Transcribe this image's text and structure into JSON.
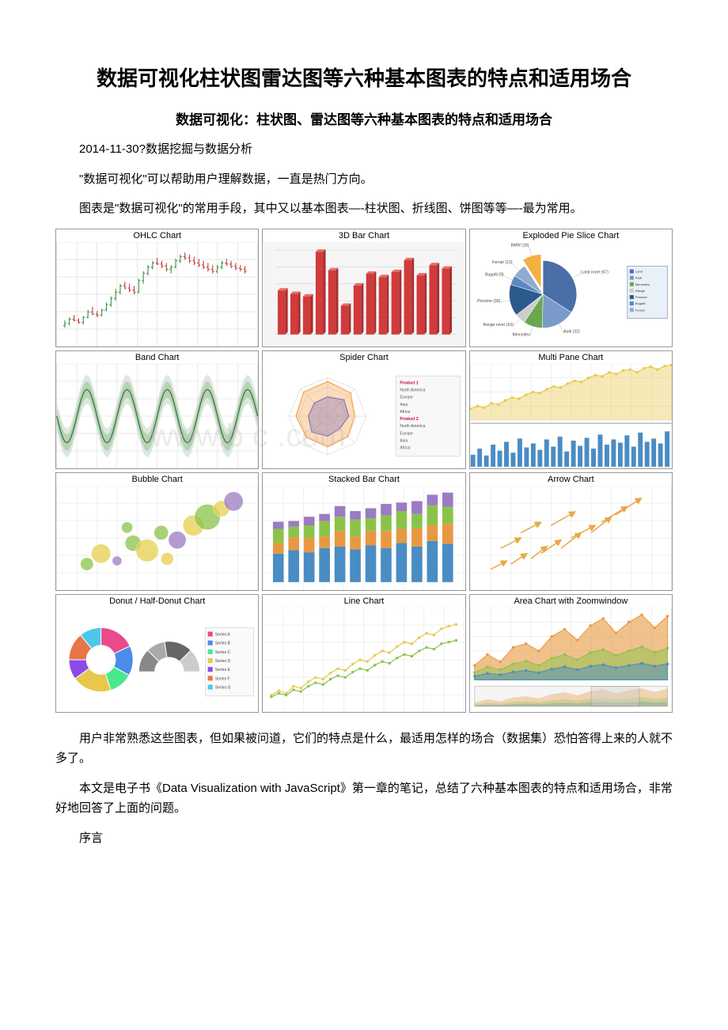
{
  "title": "数据可视化柱状图雷达图等六种基本图表的特点和适用场合",
  "subtitle": "数据可视化：柱状图、雷达图等六种基本图表的特点和适用场合",
  "meta_line": "2014-11-30?数据挖掘与数据分析",
  "para1": "\"数据可视化\"可以帮助用户理解数据，一直是热门方向。",
  "para2": "图表是\"数据可视化\"的常用手段，其中又以基本图表—-柱状图、折线图、饼图等等—-最为常用。",
  "para3": "用户非常熟悉这些图表，但如果被问道，它们的特点是什么，最适用怎样的场合（数据集）恐怕答得上来的人就不多了。",
  "para4": "本文是电子书《Data Visualization with JavaScript》第一章的笔记，总结了六种基本图表的特点和适用场合，非常好地回答了上面的问题。",
  "para5": "序言",
  "watermark": "www.b    c   .com",
  "charts": {
    "ohlc": {
      "title": "OHLC Chart",
      "type": "ohlc",
      "bg": "#ffffff",
      "grid": "#d0d0d0",
      "up_color": "#2e8b2e",
      "down_color": "#c03030",
      "xcount": 40,
      "ylim": [
        0,
        100
      ],
      "data": [
        [
          20,
          25,
          18,
          22
        ],
        [
          22,
          28,
          20,
          26
        ],
        [
          26,
          30,
          24,
          25
        ],
        [
          25,
          27,
          22,
          23
        ],
        [
          23,
          29,
          21,
          28
        ],
        [
          28,
          35,
          27,
          33
        ],
        [
          33,
          38,
          30,
          31
        ],
        [
          31,
          34,
          28,
          30
        ],
        [
          30,
          36,
          29,
          35
        ],
        [
          35,
          42,
          34,
          40
        ],
        [
          40,
          48,
          38,
          46
        ],
        [
          46,
          55,
          44,
          52
        ],
        [
          52,
          60,
          50,
          58
        ],
        [
          58,
          62,
          55,
          56
        ],
        [
          56,
          60,
          52,
          54
        ],
        [
          54,
          58,
          50,
          52
        ],
        [
          52,
          65,
          51,
          63
        ],
        [
          63,
          72,
          60,
          70
        ],
        [
          70,
          78,
          68,
          76
        ],
        [
          76,
          82,
          74,
          80
        ],
        [
          80,
          85,
          78,
          79
        ],
        [
          79,
          82,
          75,
          77
        ],
        [
          77,
          80,
          72,
          74
        ],
        [
          74,
          78,
          70,
          76
        ],
        [
          76,
          84,
          75,
          82
        ],
        [
          82,
          88,
          80,
          86
        ],
        [
          86,
          90,
          83,
          85
        ],
        [
          85,
          88,
          80,
          82
        ],
        [
          82,
          86,
          78,
          80
        ],
        [
          80,
          84,
          76,
          78
        ],
        [
          78,
          82,
          74,
          76
        ],
        [
          76,
          80,
          72,
          74
        ],
        [
          74,
          78,
          70,
          72
        ],
        [
          72,
          78,
          70,
          76
        ],
        [
          76,
          82,
          74,
          80
        ],
        [
          80,
          84,
          77,
          79
        ],
        [
          79,
          82,
          75,
          77
        ],
        [
          77,
          80,
          73,
          75
        ],
        [
          75,
          78,
          72,
          74
        ],
        [
          74,
          77,
          70,
          72
        ]
      ]
    },
    "bar3d": {
      "title": "3D Bar Chart",
      "type": "bar3d",
      "bg": "#f5f5f5",
      "bar_face": "#d13b3b",
      "bar_top": "#e86a6a",
      "bar_side": "#a82e2e",
      "categories": 14,
      "values": [
        520,
        480,
        450,
        980,
        760,
        340,
        580,
        720,
        680,
        740,
        880,
        700,
        820,
        780
      ],
      "ylim": [
        0,
        1000
      ]
    },
    "pie": {
      "title": "Exploded Pie Slice Chart",
      "type": "pie",
      "bg": "#ffffff",
      "slices": [
        {
          "label": "Land rover (67)",
          "value": 67,
          "color": "#4a6ea8"
        },
        {
          "label": "Audi (32)",
          "value": 32,
          "color": "#7a9bc9"
        },
        {
          "label": "Mercedes",
          "value": 18,
          "color": "#6aa84f"
        },
        {
          "label": "Range rover (10)",
          "value": 10,
          "color": "#cccccc"
        },
        {
          "label": "Porsche (30)",
          "value": 30,
          "color": "#2d5a8c"
        },
        {
          "label": "Bugatti (9)",
          "value": 9,
          "color": "#5d88c0"
        },
        {
          "label": "Ferrari (13)",
          "value": 13,
          "color": "#8faccf"
        },
        {
          "label": "BMW (18)",
          "value": 18,
          "color": "#f4b042",
          "exploded": true
        }
      ],
      "legend_bg": "#e8f0f8"
    },
    "band": {
      "title": "Band Chart",
      "type": "band",
      "bg": "#ffffff",
      "grid": "#d8d8d8",
      "band_outer": "#c8d8c8",
      "band_mid": "#a0c0a0",
      "line_color": "#2e7a2e",
      "cycles": 5,
      "amp": 0.8
    },
    "spider": {
      "title": "Spider Chart",
      "type": "spider",
      "bg": "#ffffff",
      "grid": "#cccccc",
      "axes": 8,
      "series": [
        {
          "color": "#f49b3f",
          "fill": "rgba(244,155,63,0.35)",
          "values": [
            0.9,
            0.85,
            0.7,
            0.75,
            0.8,
            0.78,
            0.82,
            0.88
          ]
        },
        {
          "color": "#7a6bb8",
          "fill": "rgba(122,107,184,0.35)",
          "values": [
            0.5,
            0.6,
            0.55,
            0.45,
            0.52,
            0.58,
            0.5,
            0.48
          ]
        }
      ],
      "legend_items": [
        "Product 1",
        "North America",
        "Europe",
        "Asia",
        "Africa",
        "Product 2",
        "North America",
        "Europe",
        "Asia",
        "Africa"
      ]
    },
    "multipane": {
      "title": "Multi Pane Chart",
      "type": "multipane",
      "bg": "#ffffff",
      "grid": "#e0e0e0",
      "line_color": "#e8c94a",
      "area_color": "rgba(232,201,74,0.4)",
      "bar_color": "#4a8cc4",
      "line_values": [
        20,
        25,
        22,
        30,
        28,
        35,
        40,
        38,
        45,
        50,
        48,
        55,
        60,
        58,
        65,
        70,
        68,
        75,
        80,
        78,
        85,
        82,
        88,
        90,
        85,
        92,
        95,
        90,
        96,
        98
      ],
      "bar_values": [
        30,
        45,
        28,
        55,
        40,
        62,
        35,
        70,
        48,
        58,
        42,
        68,
        50,
        75,
        38,
        65,
        52,
        72,
        45,
        80,
        55,
        68,
        60,
        78,
        50,
        85,
        62,
        70,
        58,
        88
      ]
    },
    "bubble": {
      "title": "Bubble Chart",
      "type": "bubble",
      "bg": "#ffffff",
      "grid": "#e0e0e0",
      "bubbles": [
        {
          "x": 15,
          "y": 25,
          "r": 8,
          "color": "#8bc34a"
        },
        {
          "x": 22,
          "y": 35,
          "r": 12,
          "color": "#e8d050"
        },
        {
          "x": 30,
          "y": 28,
          "r": 6,
          "color": "#9c7bc4"
        },
        {
          "x": 38,
          "y": 45,
          "r": 10,
          "color": "#8bc34a"
        },
        {
          "x": 45,
          "y": 38,
          "r": 14,
          "color": "#e8d050"
        },
        {
          "x": 52,
          "y": 55,
          "r": 9,
          "color": "#8bc34a"
        },
        {
          "x": 60,
          "y": 48,
          "r": 11,
          "color": "#9c7bc4"
        },
        {
          "x": 68,
          "y": 62,
          "r": 13,
          "color": "#e8d050"
        },
        {
          "x": 75,
          "y": 70,
          "r": 16,
          "color": "#8bc34a"
        },
        {
          "x": 82,
          "y": 78,
          "r": 10,
          "color": "#e8d050"
        },
        {
          "x": 88,
          "y": 85,
          "r": 12,
          "color": "#9c7bc4"
        },
        {
          "x": 35,
          "y": 60,
          "r": 7,
          "color": "#8bc34a"
        },
        {
          "x": 55,
          "y": 30,
          "r": 8,
          "color": "#e8d050"
        }
      ]
    },
    "stacked": {
      "title": "Stacked Bar Chart",
      "type": "stacked",
      "bg": "#ffffff",
      "grid": "#e0e0e0",
      "colors": [
        "#4a8cc4",
        "#e89840",
        "#8bc34a",
        "#9c7bc4"
      ],
      "categories": 12,
      "data": [
        [
          40,
          15,
          20,
          10
        ],
        [
          45,
          18,
          15,
          8
        ],
        [
          42,
          20,
          18,
          12
        ],
        [
          48,
          16,
          22,
          10
        ],
        [
          50,
          22,
          20,
          15
        ],
        [
          46,
          18,
          24,
          12
        ],
        [
          52,
          20,
          18,
          14
        ],
        [
          48,
          24,
          22,
          16
        ],
        [
          55,
          20,
          25,
          12
        ],
        [
          50,
          26,
          20,
          18
        ],
        [
          58,
          22,
          28,
          15
        ],
        [
          54,
          28,
          24,
          20
        ]
      ]
    },
    "arrow": {
      "title": "Arrow Chart",
      "type": "arrow",
      "bg": "#ffffff",
      "grid": "#e0e0e0",
      "arrow_color": "#e8a848",
      "arrows": [
        [
          10,
          20,
          18,
          28
        ],
        [
          20,
          25,
          28,
          35
        ],
        [
          30,
          30,
          38,
          42
        ],
        [
          15,
          40,
          25,
          50
        ],
        [
          35,
          35,
          45,
          48
        ],
        [
          45,
          40,
          55,
          55
        ],
        [
          25,
          55,
          35,
          65
        ],
        [
          50,
          50,
          62,
          62
        ],
        [
          60,
          55,
          70,
          70
        ],
        [
          40,
          62,
          52,
          75
        ],
        [
          65,
          65,
          78,
          80
        ],
        [
          72,
          72,
          85,
          88
        ]
      ]
    },
    "donut": {
      "title": "Donut / Half-Donut Chart",
      "type": "donut",
      "bg": "#ffffff",
      "full": {
        "slices": [
          {
            "value": 18,
            "color": "#e84a8c"
          },
          {
            "value": 15,
            "color": "#4a8ce8"
          },
          {
            "value": 12,
            "color": "#4ae88c"
          },
          {
            "value": 20,
            "color": "#e8c84a"
          },
          {
            "value": 10,
            "color": "#8c4ae8"
          },
          {
            "value": 14,
            "color": "#e8744a"
          },
          {
            "value": 11,
            "color": "#4ac8e8"
          }
        ]
      },
      "half": {
        "slices": [
          {
            "value": 25,
            "color": "#888888"
          },
          {
            "value": 20,
            "color": "#aaaaaa"
          },
          {
            "value": 30,
            "color": "#666666"
          },
          {
            "value": 25,
            "color": "#cccccc"
          }
        ]
      },
      "legend_items": [
        "Series A",
        "Series B",
        "Series C",
        "Series D",
        "Series E",
        "Series F",
        "Series G"
      ]
    },
    "line": {
      "title": "Line Chart",
      "type": "line",
      "bg": "#ffffff",
      "grid": "#e0e0e0",
      "series": [
        {
          "color": "#e8c94a",
          "values": [
            10,
            15,
            12,
            20,
            18,
            25,
            30,
            28,
            35,
            40,
            38,
            45,
            50,
            48,
            55,
            60,
            58,
            65,
            70,
            68,
            75,
            80,
            78,
            85,
            88,
            90
          ]
        },
        {
          "color": "#8bc34a",
          "values": [
            8,
            12,
            10,
            16,
            14,
            20,
            24,
            22,
            28,
            32,
            30,
            36,
            40,
            38,
            44,
            48,
            46,
            52,
            56,
            54,
            60,
            64,
            62,
            68,
            70,
            72
          ]
        }
      ],
      "marker": "square"
    },
    "area": {
      "title": "Area Chart with Zoomwindow",
      "type": "area",
      "bg": "#ffffff",
      "grid": "#e0e0e0",
      "series": [
        {
          "color": "#e89840",
          "fill": "rgba(232,152,64,0.6)",
          "values": [
            20,
            35,
            25,
            45,
            50,
            40,
            60,
            70,
            55,
            75,
            85,
            65,
            80,
            90,
            72,
            88
          ]
        },
        {
          "color": "#8bc34a",
          "fill": "rgba(139,195,74,0.5)",
          "values": [
            10,
            18,
            14,
            22,
            26,
            20,
            30,
            35,
            28,
            38,
            42,
            34,
            40,
            46,
            38,
            44
          ]
        },
        {
          "color": "#4a8cc4",
          "fill": "rgba(74,140,196,0.5)",
          "values": [
            5,
            9,
            7,
            11,
            13,
            10,
            15,
            18,
            14,
            19,
            21,
            17,
            20,
            23,
            19,
            22
          ]
        }
      ],
      "zoom_overlay": "#d0d0d0"
    }
  }
}
